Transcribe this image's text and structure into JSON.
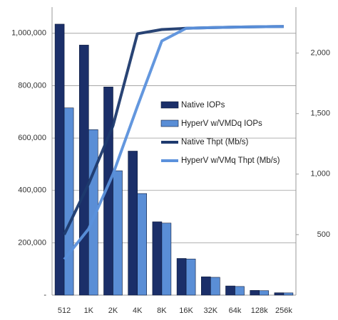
{
  "chart_data": {
    "type": "bar",
    "categories": [
      "512",
      "1K",
      "2K",
      "4K",
      "8K",
      "16K",
      "32K",
      "64k",
      "128k",
      "256k"
    ],
    "series": [
      {
        "name": "Native IOPs",
        "type": "bar",
        "color": "#1b2f69",
        "values": [
          1035000,
          955000,
          795000,
          550000,
          280000,
          140000,
          70000,
          35000,
          18000,
          9000
        ]
      },
      {
        "name": "HyperV w/VMDq IOPs",
        "type": "bar",
        "color": "#5a8ed6",
        "values": [
          715000,
          632000,
          475000,
          388000,
          275000,
          138000,
          68000,
          33000,
          17000,
          8500
        ]
      },
      {
        "name": "Native Thpt (Mb/s)",
        "type": "line",
        "axis": "y2",
        "color": "#1e3a6e",
        "values": [
          500,
          920,
          1400,
          2160,
          2195,
          2205,
          2210,
          2215,
          2218,
          2220
        ]
      },
      {
        "name": "HyperV w/VMq Thpt (Mb/s)",
        "type": "line",
        "axis": "y2",
        "color": "#5b91dc",
        "values": [
          295,
          547,
          1000,
          1560,
          2100,
          2205,
          2210,
          2215,
          2218,
          2220
        ]
      }
    ],
    "ylim": [
      0,
      1100000
    ],
    "yticks": [
      {
        "value": 0,
        "label": "-"
      },
      {
        "value": 200000,
        "label": "200,000"
      },
      {
        "value": 400000,
        "label": "400,000"
      },
      {
        "value": 600000,
        "label": "600,000"
      },
      {
        "value": 800000,
        "label": "800,000"
      },
      {
        "value": 1000000,
        "label": "1,000,000"
      }
    ],
    "y2lim": [
      0,
      2380
    ],
    "y2ticks": [
      500,
      {
        "value": 1000,
        "label": "1,000"
      },
      {
        "value": 1500,
        "label": "1,500"
      },
      {
        "value": 2000,
        "label": "2,000"
      }
    ],
    "grid": true
  }
}
